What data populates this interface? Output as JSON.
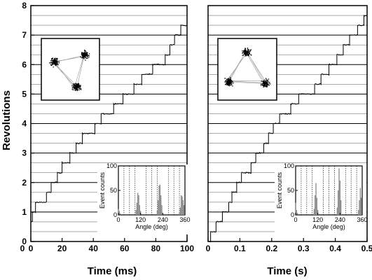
{
  "chart_data": [
    {
      "type": "line",
      "panel": "left",
      "ylabel": "Revolutions",
      "xlabel": "Time (ms)",
      "xlim": [
        0,
        100
      ],
      "ylim": [
        0,
        8
      ],
      "xticks": [
        "0",
        "20",
        "40",
        "60",
        "80",
        "100"
      ],
      "xtick_values": [
        0,
        20,
        40,
        60,
        80,
        100
      ],
      "yticks": [
        "0",
        "1",
        "2",
        "3",
        "4",
        "5",
        "6",
        "7",
        "8"
      ],
      "ytick_values": [
        0,
        1,
        2,
        3,
        4,
        5,
        6,
        7,
        8
      ],
      "y_extra_x_label": "0",
      "step_size_rev": 0.3333,
      "steps": [
        {
          "x": 0.0,
          "y": 0.67
        },
        {
          "x": 1.0,
          "y": 1.0
        },
        {
          "x": 3.0,
          "y": 1.33
        },
        {
          "x": 10.0,
          "y": 1.67
        },
        {
          "x": 13.0,
          "y": 2.0
        },
        {
          "x": 17.0,
          "y": 2.33
        },
        {
          "x": 20.0,
          "y": 2.67
        },
        {
          "x": 25.0,
          "y": 3.0
        },
        {
          "x": 29.0,
          "y": 3.33
        },
        {
          "x": 33.0,
          "y": 3.67
        },
        {
          "x": 41.0,
          "y": 4.0
        },
        {
          "x": 45.0,
          "y": 4.33
        },
        {
          "x": 53.0,
          "y": 4.67
        },
        {
          "x": 59.0,
          "y": 5.0
        },
        {
          "x": 66.0,
          "y": 5.33
        },
        {
          "x": 71.0,
          "y": 5.67
        },
        {
          "x": 78.0,
          "y": 6.0
        },
        {
          "x": 86.0,
          "y": 6.33
        },
        {
          "x": 89.0,
          "y": 6.67
        },
        {
          "x": 92.0,
          "y": 7.0
        },
        {
          "x": 96.0,
          "y": 7.33
        },
        {
          "x": 100.0,
          "y": 7.4
        }
      ],
      "inset_histogram": {
        "xlabel": "Angle (deg)",
        "ylabel": "Event counts",
        "xticks": [
          "0",
          "120",
          "240",
          "360"
        ],
        "xtick_values": [
          0,
          120,
          240,
          360
        ],
        "yticks": [
          "0",
          "50",
          "100"
        ],
        "ytick_values": [
          0,
          50,
          100
        ],
        "xlim": [
          0,
          360
        ],
        "ylim": [
          0,
          100
        ],
        "bins": [
          {
            "x": 0,
            "y": 12
          },
          {
            "x": 5,
            "y": 8
          },
          {
            "x": 10,
            "y": 3
          },
          {
            "x": 95,
            "y": 10
          },
          {
            "x": 100,
            "y": 25
          },
          {
            "x": 105,
            "y": 45
          },
          {
            "x": 110,
            "y": 40
          },
          {
            "x": 115,
            "y": 20
          },
          {
            "x": 120,
            "y": 8
          },
          {
            "x": 210,
            "y": 10
          },
          {
            "x": 215,
            "y": 30
          },
          {
            "x": 220,
            "y": 60
          },
          {
            "x": 225,
            "y": 62
          },
          {
            "x": 230,
            "y": 40
          },
          {
            "x": 235,
            "y": 20
          },
          {
            "x": 330,
            "y": 6
          },
          {
            "x": 335,
            "y": 15
          },
          {
            "x": 340,
            "y": 40
          },
          {
            "x": 345,
            "y": 38
          },
          {
            "x": 350,
            "y": 30
          },
          {
            "x": 355,
            "y": 20
          }
        ],
        "dotted_lines": [
          30,
          60,
          90,
          150,
          180,
          210,
          270,
          300,
          330
        ]
      },
      "inset_scatter": {
        "clusters": [
          {
            "cx": 0.22,
            "cy": 0.38,
            "n": 140
          },
          {
            "cx": 0.74,
            "cy": 0.26,
            "n": 110
          },
          {
            "cx": 0.6,
            "cy": 0.78,
            "n": 130
          }
        ]
      }
    },
    {
      "type": "line",
      "panel": "right",
      "xlabel": "Time (s)",
      "xlim": [
        0,
        0.5
      ],
      "ylim": [
        0,
        8
      ],
      "xticks": [
        "0",
        "0.1",
        "0.2",
        "0.3",
        "0.4",
        "0.5"
      ],
      "xtick_values": [
        0,
        0.1,
        0.2,
        0.3,
        0.4,
        0.5
      ],
      "step_size_rev": 0.3333,
      "steps": [
        {
          "x": 0.0,
          "y": 0.0
        },
        {
          "x": 0.008,
          "y": 0.33
        },
        {
          "x": 0.025,
          "y": 0.67
        },
        {
          "x": 0.045,
          "y": 1.0
        },
        {
          "x": 0.065,
          "y": 1.33
        },
        {
          "x": 0.075,
          "y": 1.67
        },
        {
          "x": 0.09,
          "y": 2.0
        },
        {
          "x": 0.105,
          "y": 2.33
        },
        {
          "x": 0.135,
          "y": 2.67
        },
        {
          "x": 0.15,
          "y": 3.0
        },
        {
          "x": 0.175,
          "y": 3.33
        },
        {
          "x": 0.19,
          "y": 3.67
        },
        {
          "x": 0.205,
          "y": 4.0
        },
        {
          "x": 0.225,
          "y": 4.33
        },
        {
          "x": 0.26,
          "y": 4.67
        },
        {
          "x": 0.285,
          "y": 5.0
        },
        {
          "x": 0.335,
          "y": 5.33
        },
        {
          "x": 0.355,
          "y": 5.67
        },
        {
          "x": 0.38,
          "y": 6.0
        },
        {
          "x": 0.405,
          "y": 6.33
        },
        {
          "x": 0.425,
          "y": 6.67
        },
        {
          "x": 0.445,
          "y": 7.0
        },
        {
          "x": 0.47,
          "y": 7.33
        },
        {
          "x": 0.49,
          "y": 7.67
        },
        {
          "x": 0.5,
          "y": 7.75
        }
      ],
      "inset_histogram": {
        "xlabel": "Angle (deg)",
        "ylabel": "Event counts",
        "xticks": [
          "0",
          "120",
          "240",
          "360"
        ],
        "xtick_values": [
          0,
          120,
          240,
          360
        ],
        "yticks": [
          "0",
          "50",
          "100"
        ],
        "ytick_values": [
          0,
          50,
          100
        ],
        "xlim": [
          0,
          360
        ],
        "ylim": [
          0,
          100
        ],
        "bins": [
          {
            "x": 0,
            "y": 25
          },
          {
            "x": 5,
            "y": 10
          },
          {
            "x": 10,
            "y": 4
          },
          {
            "x": 100,
            "y": 12
          },
          {
            "x": 105,
            "y": 40
          },
          {
            "x": 110,
            "y": 65
          },
          {
            "x": 115,
            "y": 35
          },
          {
            "x": 120,
            "y": 10
          },
          {
            "x": 225,
            "y": 15
          },
          {
            "x": 230,
            "y": 50
          },
          {
            "x": 235,
            "y": 95
          },
          {
            "x": 240,
            "y": 70
          },
          {
            "x": 245,
            "y": 30
          },
          {
            "x": 340,
            "y": 10
          },
          {
            "x": 345,
            "y": 30
          },
          {
            "x": 350,
            "y": 55
          },
          {
            "x": 355,
            "y": 35
          }
        ],
        "dotted_lines": [
          30,
          60,
          90,
          150,
          180,
          210,
          270,
          300,
          330
        ]
      },
      "inset_scatter": {
        "clusters": [
          {
            "cx": 0.48,
            "cy": 0.22,
            "n": 120
          },
          {
            "cx": 0.18,
            "cy": 0.7,
            "n": 140
          },
          {
            "cx": 0.8,
            "cy": 0.72,
            "n": 120
          }
        ]
      }
    }
  ]
}
